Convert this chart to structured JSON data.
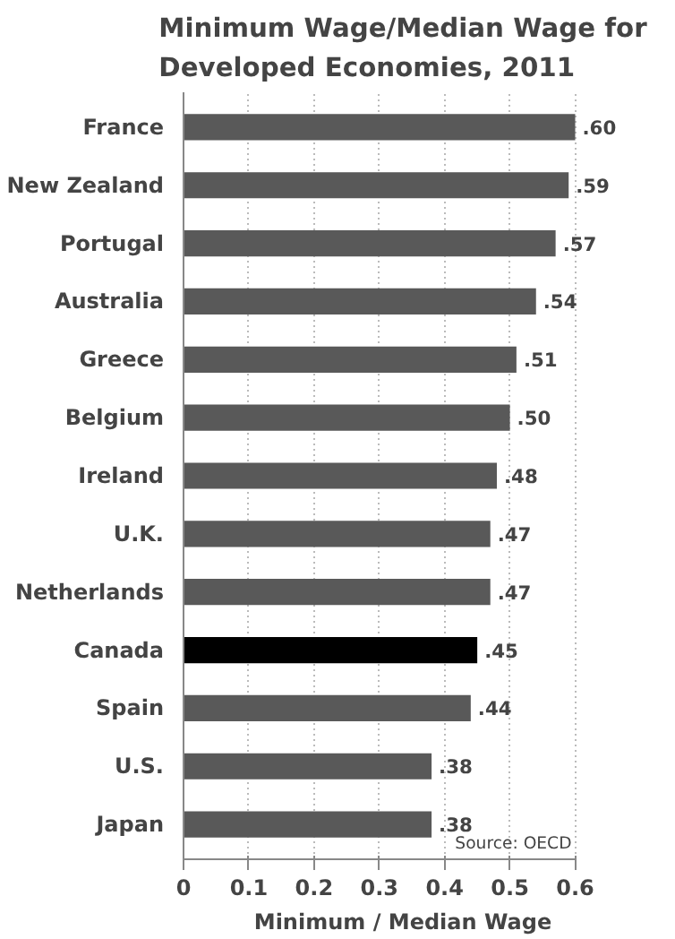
{
  "chart_data": {
    "type": "bar",
    "orientation": "horizontal",
    "title": "Minimum Wage/Median Wage for Developed Economies, 2011",
    "xlabel": "Minimum / Median Wage",
    "categories": [
      "France",
      "New Zealand",
      "Portugal",
      "Australia",
      "Greece",
      "Belgium",
      "Ireland",
      "U.K.",
      "Netherlands",
      "Canada",
      "Spain",
      "U.S.",
      "Japan"
    ],
    "values": [
      0.6,
      0.59,
      0.57,
      0.54,
      0.51,
      0.5,
      0.48,
      0.47,
      0.47,
      0.45,
      0.44,
      0.38,
      0.38
    ],
    "value_labels": [
      ".60",
      ".59",
      ".57",
      ".54",
      ".51",
      ".50",
      ".48",
      ".47",
      ".47",
      ".45",
      ".44",
      ".38",
      ".38"
    ],
    "colors": [
      "#595959",
      "#595959",
      "#595959",
      "#595959",
      "#595959",
      "#595959",
      "#595959",
      "#595959",
      "#595959",
      "#000000",
      "#595959",
      "#595959",
      "#595959"
    ],
    "xlim": [
      0,
      0.6
    ],
    "xticks": [
      0,
      0.1,
      0.2,
      0.3,
      0.4,
      0.5,
      0.6
    ],
    "grid": "x",
    "annotations": [
      "Source: OECD"
    ]
  }
}
